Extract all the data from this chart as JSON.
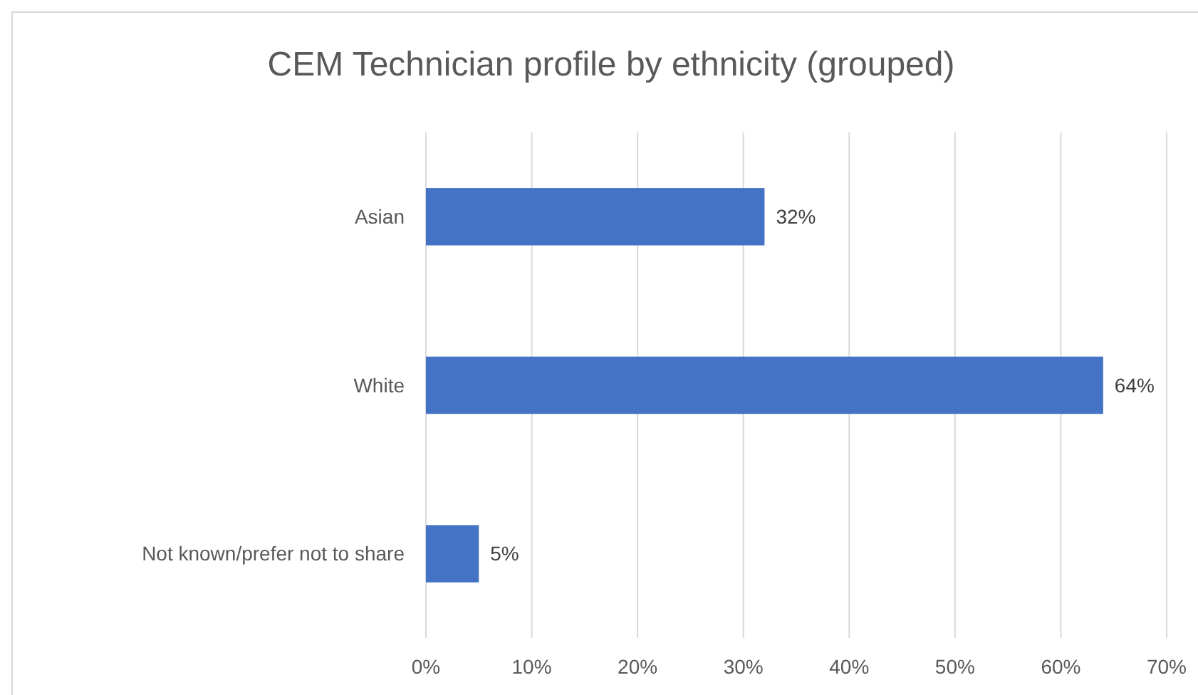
{
  "chart_data": {
    "type": "bar",
    "title": "CEM Technician profile by ethnicity (grouped)",
    "orientation": "horizontal",
    "categories": [
      "Asian",
      "White",
      "Not known/prefer not to share"
    ],
    "values": [
      32,
      64,
      5
    ],
    "value_labels": [
      "32%",
      "64%",
      "5%"
    ],
    "color": "#4472c4",
    "xlim": [
      0,
      70
    ],
    "xticks": [
      {
        "value": 0,
        "label": "0%"
      },
      {
        "value": 10,
        "label": "10%"
      },
      {
        "value": 20,
        "label": "20%"
      },
      {
        "value": 30,
        "label": "30%"
      },
      {
        "value": 40,
        "label": "40%"
      },
      {
        "value": 50,
        "label": "50%"
      },
      {
        "value": 60,
        "label": "60%"
      },
      {
        "value": 70,
        "label": "70%"
      }
    ],
    "grid": "x"
  }
}
